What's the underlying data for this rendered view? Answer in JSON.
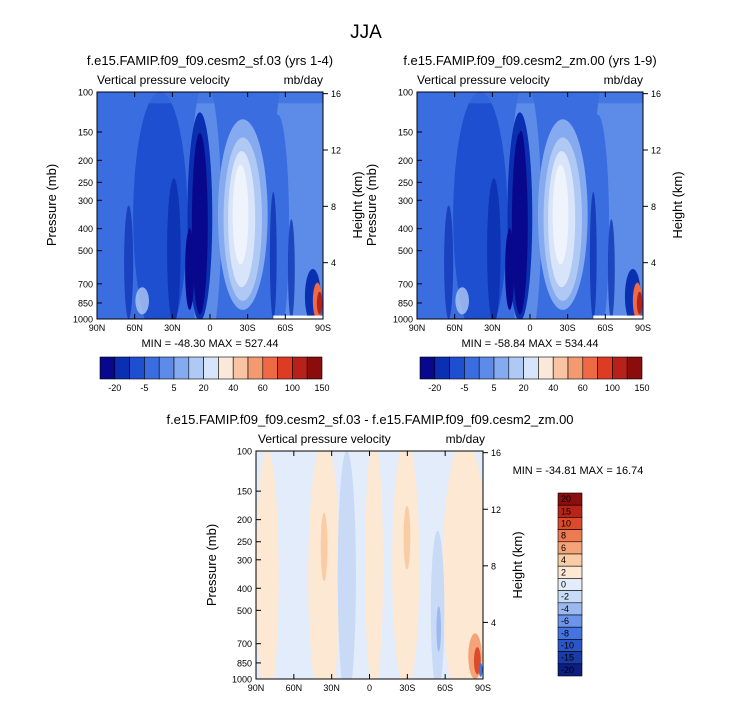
{
  "figure": {
    "title": "JJA"
  },
  "palette": {
    "main": [
      "#08088c",
      "#0a2fb0",
      "#1e4fd0",
      "#3a6ee0",
      "#5c8ce8",
      "#86aaf0",
      "#b0c8f4",
      "#d8e4fa",
      "#fbe8d8",
      "#f8c4a4",
      "#f49a70",
      "#ee6a44",
      "#de3c22",
      "#b8201a",
      "#8a0c0c"
    ],
    "diff": [
      "#0c1e80",
      "#1a3aa8",
      "#2a56c8",
      "#4474e0",
      "#6c94ea",
      "#9cb8f0",
      "#c8daf6",
      "#e2ecfa",
      "#fde8d4",
      "#f9cca6",
      "#f4a478",
      "#ee7a52",
      "#dc4a2c",
      "#b82418",
      "#8c0e0e"
    ]
  },
  "chart_data": [
    {
      "type": "heatmap",
      "title": "f.e15.FAMIP.f09_f09.cesm2_sf.03 (yrs 1-4)",
      "left_string": "Vertical pressure velocity",
      "right_string": "mb/day",
      "ylabel": "Pressure (mb)",
      "y2label": "Height (km)",
      "xticks": [
        "90N",
        "60N",
        "30N",
        "0",
        "30S",
        "60S",
        "90S"
      ],
      "yticks": [
        "100",
        "150",
        "200",
        "250",
        "300",
        "400",
        "500",
        "700",
        "850",
        "1000"
      ],
      "y2ticks": [
        "16",
        "12",
        "8",
        "4"
      ],
      "min_max": "MIN = -48.30   MAX = 527.44",
      "colorbar_labels": [
        "-20",
        "-5",
        "5",
        "20",
        "40",
        "60",
        "100",
        "150"
      ]
    },
    {
      "type": "heatmap",
      "title": "f.e15.FAMIP.f09_f09.cesm2_zm.00 (yrs 1-9)",
      "left_string": "Vertical pressure velocity",
      "right_string": "mb/day",
      "ylabel": "Pressure (mb)",
      "y2label": "Height (km)",
      "xticks": [
        "90N",
        "60N",
        "30N",
        "0",
        "30S",
        "60S",
        "90S"
      ],
      "yticks": [
        "100",
        "150",
        "200",
        "250",
        "300",
        "400",
        "500",
        "700",
        "850",
        "1000"
      ],
      "y2ticks": [
        "16",
        "12",
        "8",
        "4"
      ],
      "min_max": "MIN = -58.84   MAX = 534.44",
      "colorbar_labels": [
        "-20",
        "-5",
        "5",
        "20",
        "40",
        "60",
        "100",
        "150"
      ]
    },
    {
      "type": "heatmap",
      "title": "f.e15.FAMIP.f09_f09.cesm2_sf.03 - f.e15.FAMIP.f09_f09.cesm2_zm.00",
      "left_string": "Vertical pressure velocity",
      "right_string": "mb/day",
      "ylabel": "Pressure (mb)",
      "y2label": "Height (km)",
      "xticks": [
        "90N",
        "60N",
        "30N",
        "0",
        "30S",
        "60S",
        "90S"
      ],
      "yticks": [
        "100",
        "150",
        "200",
        "250",
        "300",
        "400",
        "500",
        "700",
        "850",
        "1000"
      ],
      "y2ticks": [
        "16",
        "12",
        "8",
        "4"
      ],
      "min_max": "MIN = -34.81   MAX = 16.74",
      "colorbar_labels": [
        "20",
        "15",
        "10",
        "8",
        "6",
        "4",
        "2",
        "0",
        "-2",
        "-4",
        "-6",
        "-8",
        "-10",
        "-15",
        "-20"
      ]
    }
  ]
}
